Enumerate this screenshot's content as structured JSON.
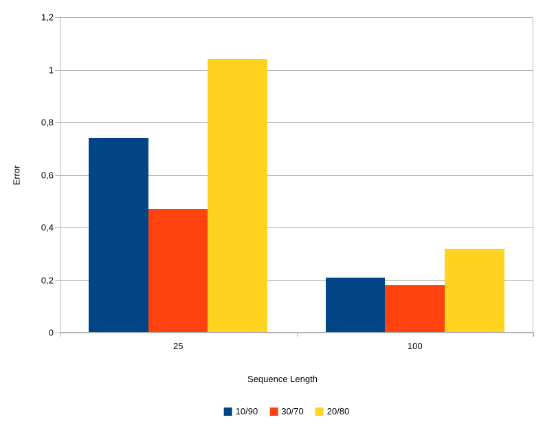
{
  "chart_data": {
    "type": "bar",
    "categories": [
      "25",
      "100"
    ],
    "series": [
      {
        "name": "10/90",
        "color": "#004586",
        "values": [
          0.74,
          0.21
        ]
      },
      {
        "name": "30/70",
        "color": "#FF420E",
        "values": [
          0.47,
          0.18
        ]
      },
      {
        "name": "20/80",
        "color": "#FFD320",
        "values": [
          1.04,
          0.32
        ]
      }
    ],
    "title": "",
    "xlabel": "Sequence Length",
    "ylabel": "Error",
    "ylim": [
      0,
      1.2
    ],
    "ytick_step": 0.2,
    "ytick_labels": [
      "0",
      "0,2",
      "0,4",
      "0,6",
      "0,8",
      "1",
      "1,2"
    ],
    "grid": true,
    "legend_position": "bottom",
    "decimal_separator": ","
  },
  "colors": {
    "background": "#ffffff",
    "gridline": "#b3b3b3",
    "axis": "#b3b3b3",
    "text": "#000000"
  }
}
